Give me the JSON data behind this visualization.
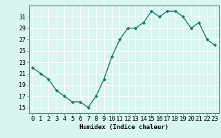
{
  "x": [
    0,
    1,
    2,
    3,
    4,
    5,
    6,
    7,
    8,
    9,
    10,
    11,
    12,
    13,
    14,
    15,
    16,
    17,
    18,
    19,
    20,
    21,
    22,
    23
  ],
  "y": [
    22,
    21,
    20,
    18,
    17,
    16,
    16,
    15,
    17,
    20,
    24,
    27,
    29,
    29,
    30,
    32,
    31,
    32,
    32,
    31,
    29,
    30,
    27,
    26
  ],
  "line_color": "#1a7a6e",
  "marker": "D",
  "marker_size": 2.2,
  "bg_color": "#d8f5f0",
  "grid_color": "#ffffff",
  "xlabel": "Humidex (Indice chaleur)",
  "ylim": [
    14,
    33
  ],
  "xlim": [
    -0.5,
    23.5
  ],
  "yticks": [
    15,
    17,
    19,
    21,
    23,
    25,
    27,
    29,
    31
  ],
  "xticks": [
    0,
    1,
    2,
    3,
    4,
    5,
    6,
    7,
    8,
    9,
    10,
    11,
    12,
    13,
    14,
    15,
    16,
    17,
    18,
    19,
    20,
    21,
    22,
    23
  ],
  "xlabel_fontsize": 6.5,
  "tick_fontsize": 6,
  "line_width": 1.0
}
